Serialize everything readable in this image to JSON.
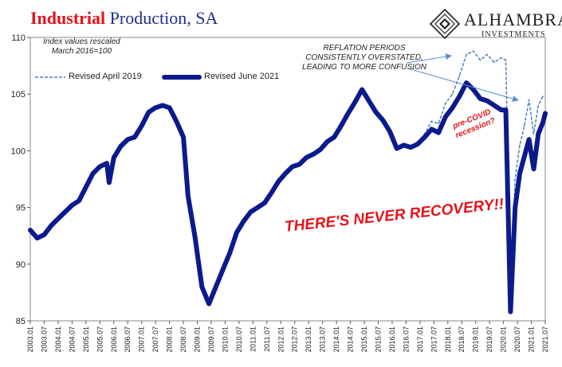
{
  "title": {
    "part1": "Industrial",
    "part2": "Production, SA"
  },
  "logo": {
    "name": "ALHAMBRA",
    "sub": "INVESTMENTS"
  },
  "notes": {
    "index_line1": "Index values rescaled",
    "index_line2": "March 2016=100",
    "reflation_line1": "REFLATION PERIODS",
    "reflation_line2": "CONSISTENTLY OVERSTATED,",
    "reflation_line3": "LEADING TO MORE CONFUSION",
    "never_recovery": "THERE'S NEVER RECOVERY!!",
    "covid_line1": "pre-COVID",
    "covid_line2": "recession?"
  },
  "colors": {
    "revised_2021": "#0b1a8c",
    "revised_2019": "#4a7fbf",
    "annotation_red": "#e3121b",
    "arrow": "#5b8fd0"
  },
  "chart_data": {
    "type": "line",
    "ylim": [
      85,
      110
    ],
    "yticks": [
      85,
      90,
      95,
      100,
      105,
      110
    ],
    "x_start": "2003.01",
    "x_end": "2021.07",
    "xticks": [
      "2003.01",
      "2003.07",
      "2004.01",
      "2004.07",
      "2005.01",
      "2005.07",
      "2006.01",
      "2006.07",
      "2007.01",
      "2007.07",
      "2008.01",
      "2008.07",
      "2009.01",
      "2009.07",
      "2010.01",
      "2010.07",
      "2011.01",
      "2011.07",
      "2012.01",
      "2012.07",
      "2013.01",
      "2013.07",
      "2014.01",
      "2014.07",
      "2015.01",
      "2015.07",
      "2016.01",
      "2016.07",
      "2017.01",
      "2017.07",
      "2018.01",
      "2018.07",
      "2019.01",
      "2019.07",
      "2020.01",
      "2020.07",
      "2021.01",
      "2021.07"
    ],
    "series": [
      {
        "name": "Revised June 2021",
        "style": "solid-thick",
        "points": [
          [
            "2003.01",
            93.0
          ],
          [
            "2003.04",
            92.3
          ],
          [
            "2003.07",
            92.6
          ],
          [
            "2003.10",
            93.4
          ],
          [
            "2004.01",
            94.0
          ],
          [
            "2004.04",
            94.6
          ],
          [
            "2004.07",
            95.2
          ],
          [
            "2004.10",
            95.6
          ],
          [
            "2005.01",
            96.8
          ],
          [
            "2005.04",
            98.0
          ],
          [
            "2005.07",
            98.6
          ],
          [
            "2005.10",
            98.9
          ],
          [
            "2005.11",
            97.2
          ],
          [
            "2006.01",
            99.4
          ],
          [
            "2006.04",
            100.4
          ],
          [
            "2006.07",
            101.0
          ],
          [
            "2006.10",
            101.2
          ],
          [
            "2007.01",
            102.2
          ],
          [
            "2007.04",
            103.4
          ],
          [
            "2007.07",
            103.8
          ],
          [
            "2007.10",
            104.0
          ],
          [
            "2008.01",
            103.8
          ],
          [
            "2008.04",
            102.6
          ],
          [
            "2008.07",
            101.2
          ],
          [
            "2008.09",
            96.0
          ],
          [
            "2008.12",
            92.4
          ],
          [
            "2009.03",
            88.0
          ],
          [
            "2009.06",
            86.5
          ],
          [
            "2009.09",
            88.0
          ],
          [
            "2009.12",
            89.5
          ],
          [
            "2010.03",
            91.0
          ],
          [
            "2010.06",
            92.8
          ],
          [
            "2010.09",
            93.8
          ],
          [
            "2010.12",
            94.6
          ],
          [
            "2011.03",
            95.0
          ],
          [
            "2011.06",
            95.4
          ],
          [
            "2011.09",
            96.3
          ],
          [
            "2011.12",
            97.3
          ],
          [
            "2012.03",
            98.0
          ],
          [
            "2012.06",
            98.6
          ],
          [
            "2012.09",
            98.8
          ],
          [
            "2012.12",
            99.4
          ],
          [
            "2013.03",
            99.7
          ],
          [
            "2013.06",
            100.1
          ],
          [
            "2013.09",
            100.8
          ],
          [
            "2013.12",
            101.2
          ],
          [
            "2014.03",
            102.2
          ],
          [
            "2014.06",
            103.3
          ],
          [
            "2014.09",
            104.3
          ],
          [
            "2014.12",
            105.4
          ],
          [
            "2015.03",
            104.4
          ],
          [
            "2015.06",
            103.4
          ],
          [
            "2015.09",
            102.7
          ],
          [
            "2015.12",
            101.7
          ],
          [
            "2016.03",
            100.2
          ],
          [
            "2016.06",
            100.5
          ],
          [
            "2016.09",
            100.3
          ],
          [
            "2016.12",
            100.6
          ],
          [
            "2017.03",
            101.2
          ],
          [
            "2017.06",
            101.9
          ],
          [
            "2017.09",
            101.6
          ],
          [
            "2017.12",
            103.0
          ],
          [
            "2018.03",
            103.8
          ],
          [
            "2018.06",
            104.8
          ],
          [
            "2018.09",
            106.0
          ],
          [
            "2018.12",
            105.4
          ],
          [
            "2019.03",
            104.6
          ],
          [
            "2019.06",
            104.4
          ],
          [
            "2019.09",
            104.0
          ],
          [
            "2019.12",
            103.6
          ],
          [
            "2020.02",
            103.6
          ],
          [
            "2020.04",
            85.8
          ],
          [
            "2020.06",
            95.0
          ],
          [
            "2020.08",
            98.0
          ],
          [
            "2020.10",
            99.5
          ],
          [
            "2020.12",
            101.0
          ],
          [
            "2021.02",
            98.4
          ],
          [
            "2021.04",
            101.5
          ],
          [
            "2021.06",
            102.5
          ],
          [
            "2021.07",
            103.3
          ]
        ]
      },
      {
        "name": "Revised April 2019",
        "style": "dashed",
        "points": [
          [
            "2016.12",
            100.7
          ],
          [
            "2017.03",
            101.5
          ],
          [
            "2017.06",
            102.6
          ],
          [
            "2017.09",
            102.4
          ],
          [
            "2017.12",
            104.2
          ],
          [
            "2018.03",
            105.0
          ],
          [
            "2018.06",
            106.6
          ],
          [
            "2018.09",
            108.5
          ],
          [
            "2018.12",
            108.8
          ],
          [
            "2019.03",
            108.0
          ],
          [
            "2019.06",
            108.5
          ],
          [
            "2019.09",
            107.8
          ],
          [
            "2019.12",
            108.2
          ],
          [
            "2020.02",
            108.0
          ],
          [
            "2020.04",
            88.0
          ],
          [
            "2020.06",
            97.5
          ],
          [
            "2020.08",
            100.5
          ],
          [
            "2020.10",
            102.2
          ],
          [
            "2020.12",
            104.5
          ],
          [
            "2021.02",
            101.5
          ],
          [
            "2021.04",
            104.0
          ],
          [
            "2021.06",
            104.8
          ]
        ]
      }
    ]
  }
}
